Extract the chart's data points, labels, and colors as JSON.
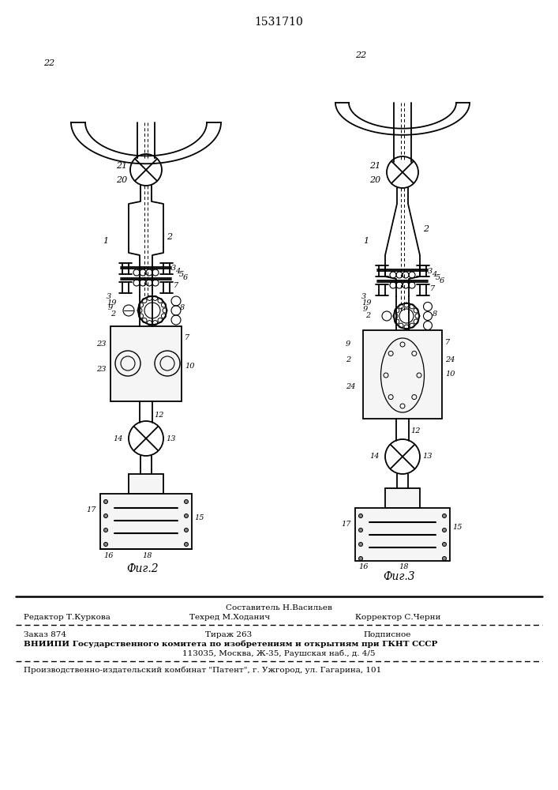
{
  "title": "1531710",
  "fig2_label": "Фиг.2",
  "fig3_label": "Фиг.3",
  "bg_color": "#ffffff",
  "line_color": "#000000",
  "footer_line0": "Составитель Н.Васильев",
  "footer_line1_left": "Редактор Т.Куркова",
  "footer_line1_mid": "Техред М.Ходанич",
  "footer_line1_right": "Корректор С.Черни",
  "footer_line2_left": "Заказ 874",
  "footer_line2_mid": "Тираж 263",
  "footer_line2_right": "Подписное",
  "footer_line3": "ВНИИПИ Государственного комитета по изобретениям и открытиям при ГКНТ СССР",
  "footer_line4": "113035, Москва, Ж-35, Раушская наб., д. 4/5",
  "footer_line5": "Производственно-издательский комбинат \"Патент\", г. Ужгород, ул. Гагарина, 101"
}
